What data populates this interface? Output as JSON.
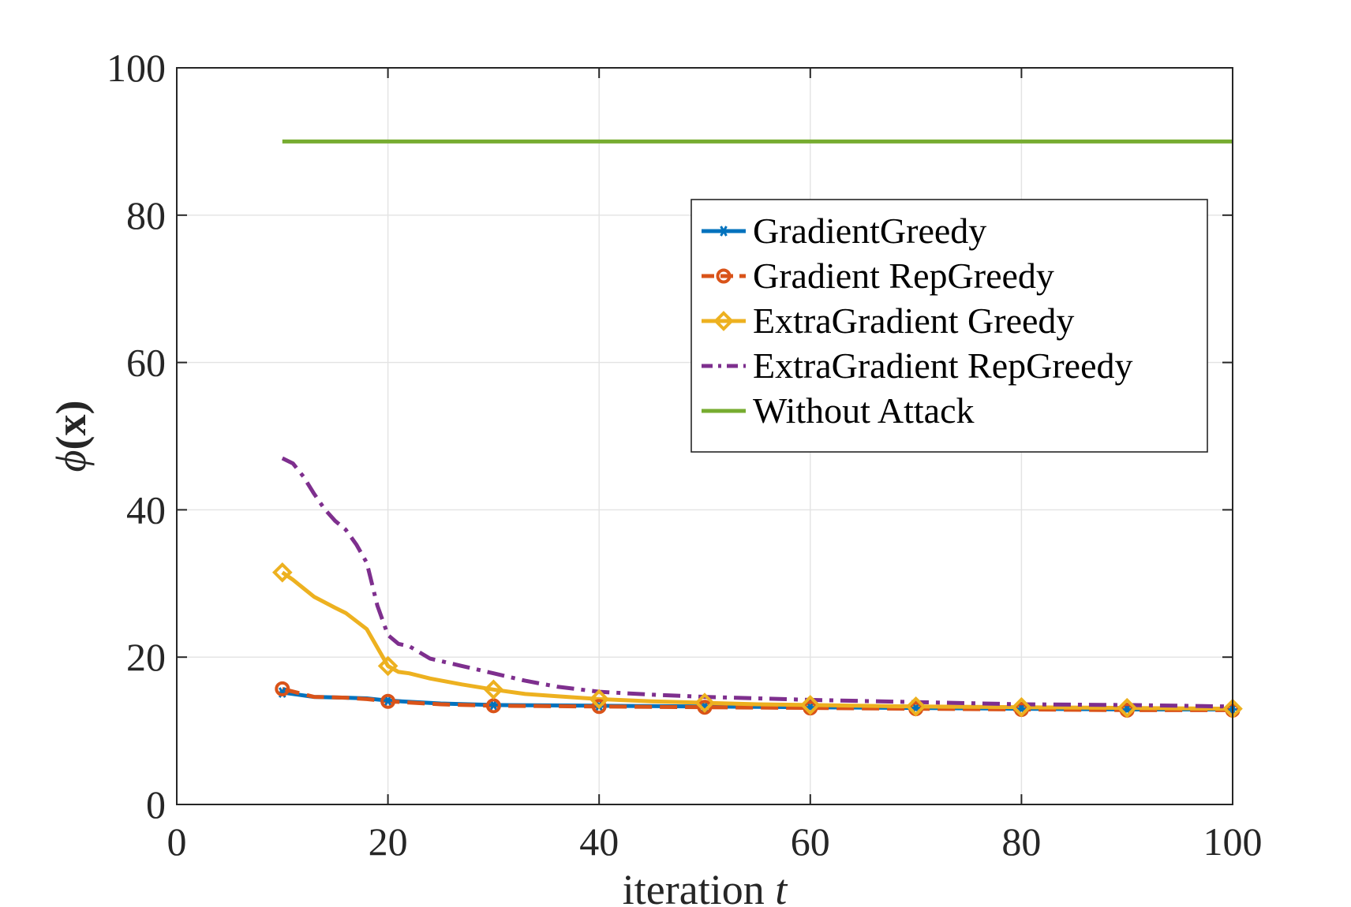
{
  "chart_data": {
    "type": "line",
    "title": "",
    "xlabel": "iteration",
    "xlabel_var": "t",
    "ylabel_symbol": "ϕ",
    "ylabel_rest": "(x)",
    "xlim": [
      0,
      100
    ],
    "ylim": [
      0,
      100
    ],
    "xticks": [
      0,
      20,
      40,
      60,
      80,
      100
    ],
    "yticks": [
      0,
      20,
      40,
      60,
      80,
      100
    ],
    "xtick_labels": [
      "0",
      "20",
      "40",
      "60",
      "80",
      "100"
    ],
    "ytick_labels": [
      "0",
      "20",
      "40",
      "60",
      "80",
      "100"
    ],
    "grid": true,
    "legend_position": "upper-right",
    "series": [
      {
        "name": "GradientGreedy",
        "color": "#0072BD",
        "style": "solid",
        "marker": "star",
        "x": [
          10,
          13,
          16,
          18,
          20,
          25,
          30,
          40,
          50,
          60,
          70,
          80,
          90,
          100
        ],
        "y": [
          15.2,
          14.6,
          14.5,
          14.4,
          14.1,
          13.7,
          13.5,
          13.4,
          13.3,
          13.2,
          13.1,
          13.0,
          12.9,
          12.9
        ],
        "marker_x": [
          10,
          20,
          30,
          40,
          50,
          60,
          70,
          80,
          90,
          100
        ]
      },
      {
        "name": "Gradient RepGreedy",
        "color": "#D95319",
        "style": "dashed",
        "marker": "circle",
        "x": [
          10,
          13,
          16,
          18,
          20,
          25,
          30,
          40,
          50,
          60,
          70,
          80,
          90,
          100
        ],
        "y": [
          15.7,
          14.6,
          14.5,
          14.3,
          14.0,
          13.6,
          13.4,
          13.3,
          13.2,
          13.1,
          13.0,
          12.9,
          12.8,
          12.8
        ],
        "marker_x": [
          10,
          20,
          30,
          40,
          50,
          60,
          70,
          80,
          90,
          100
        ]
      },
      {
        "name": "ExtraGradient Greedy",
        "color": "#EDB120",
        "style": "solid",
        "marker": "diamond",
        "x": [
          10,
          11,
          13,
          15,
          16,
          18,
          20,
          21,
          22,
          24,
          27,
          30,
          33,
          36,
          40,
          45,
          50,
          55,
          60,
          70,
          80,
          90,
          100
        ],
        "y": [
          31.5,
          30.5,
          28.2,
          26.7,
          26.0,
          23.8,
          18.8,
          18.0,
          17.8,
          17.1,
          16.3,
          15.6,
          15.0,
          14.7,
          14.3,
          14.0,
          13.8,
          13.6,
          13.5,
          13.3,
          13.2,
          13.1,
          13.0
        ],
        "marker_x": [
          10,
          20,
          30,
          40,
          50,
          60,
          70,
          80,
          90,
          100
        ]
      },
      {
        "name": "ExtraGradient RepGreedy",
        "color": "#7E2F8E",
        "style": "dashdot",
        "marker": "none",
        "x": [
          10,
          11,
          12,
          13,
          14,
          15,
          16,
          17,
          18,
          19,
          20,
          21,
          22,
          24,
          27,
          30,
          33,
          36,
          40,
          45,
          50,
          55,
          60,
          70,
          80,
          90,
          100
        ],
        "y": [
          47.0,
          46.3,
          44.5,
          42.2,
          40.1,
          38.5,
          37.3,
          35.3,
          32.8,
          27.0,
          23.0,
          21.8,
          21.5,
          19.8,
          18.8,
          17.8,
          16.8,
          16.0,
          15.3,
          14.9,
          14.6,
          14.4,
          14.2,
          13.9,
          13.6,
          13.5,
          13.3
        ],
        "marker_x": []
      },
      {
        "name": "Without Attack",
        "color": "#77AC30",
        "style": "solid",
        "marker": "none",
        "x": [
          10,
          100
        ],
        "y": [
          90,
          90
        ],
        "marker_x": []
      }
    ]
  }
}
